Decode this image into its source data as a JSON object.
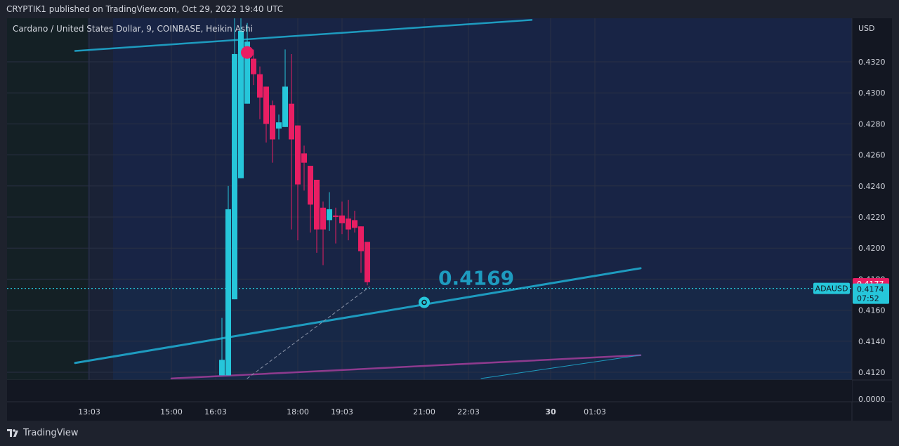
{
  "header": {
    "published_line": "CRYPTIK1 published on TradingView.com, Oct 29, 2022 19:40 UTC"
  },
  "footer": {
    "brand": "TradingView"
  },
  "chart_data": {
    "type": "candlestick",
    "candle_style": "Heikin Ashi",
    "symbol_title": "Cardano / United States Dollar, 9, COINBASE, Heikin Ashi",
    "currency": "USD",
    "symbol": "ADAUSD",
    "y_axis": {
      "min": 0.4115,
      "max": 0.4345,
      "ticks": [
        "0.4320",
        "0.4300",
        "0.4280",
        "0.4260",
        "0.4240",
        "0.4220",
        "0.4200",
        "0.4180",
        "0.4160",
        "0.4140",
        "0.4120"
      ]
    },
    "volume_axis_label": "0.0000",
    "x_axis_ticks": [
      {
        "label": "13:03",
        "t": -180
      },
      {
        "label": "15:00",
        "t": -63
      },
      {
        "label": "16:03",
        "t": 0
      },
      {
        "label": "18:00",
        "t": 117
      },
      {
        "label": "19:03",
        "t": 180
      },
      {
        "label": "21:00",
        "t": 297
      },
      {
        "label": "22:03",
        "t": 360
      },
      {
        "label": "30",
        "t": 477,
        "bold": true
      },
      {
        "label": "01:03",
        "t": 540
      }
    ],
    "candles": [
      {
        "t": 9,
        "o": 0.4118,
        "h": 0.4155,
        "l": 0.4118,
        "c": 0.4128
      },
      {
        "t": 18,
        "o": 0.4118,
        "h": 0.424,
        "l": 0.4118,
        "c": 0.4225
      },
      {
        "t": 27,
        "o": 0.4167,
        "h": 0.4348,
        "l": 0.4167,
        "c": 0.4325
      },
      {
        "t": 36,
        "o": 0.4245,
        "h": 0.4348,
        "l": 0.4245,
        "c": 0.434
      },
      {
        "t": 45,
        "o": 0.4293,
        "h": 0.4345,
        "l": 0.4293,
        "c": 0.4333
      },
      {
        "t": 54,
        "o": 0.4322,
        "h": 0.4328,
        "l": 0.4305,
        "c": 0.4312
      },
      {
        "t": 63,
        "o": 0.4312,
        "h": 0.4317,
        "l": 0.4283,
        "c": 0.4297
      },
      {
        "t": 72,
        "o": 0.4304,
        "h": 0.4304,
        "l": 0.4268,
        "c": 0.428
      },
      {
        "t": 81,
        "o": 0.4292,
        "h": 0.4295,
        "l": 0.4255,
        "c": 0.427
      },
      {
        "t": 90,
        "o": 0.4277,
        "h": 0.4286,
        "l": 0.427,
        "c": 0.4281
      },
      {
        "t": 99,
        "o": 0.4278,
        "h": 0.4328,
        "l": 0.4278,
        "c": 0.4304
      },
      {
        "t": 108,
        "o": 0.4293,
        "h": 0.4325,
        "l": 0.4212,
        "c": 0.427
      },
      {
        "t": 117,
        "o": 0.4279,
        "h": 0.4279,
        "l": 0.4205,
        "c": 0.4241
      },
      {
        "t": 126,
        "o": 0.4261,
        "h": 0.4266,
        "l": 0.4237,
        "c": 0.4255
      },
      {
        "t": 135,
        "o": 0.4253,
        "h": 0.4253,
        "l": 0.421,
        "c": 0.4228
      },
      {
        "t": 144,
        "o": 0.4244,
        "h": 0.4244,
        "l": 0.4197,
        "c": 0.4212
      },
      {
        "t": 153,
        "o": 0.4226,
        "h": 0.423,
        "l": 0.4189,
        "c": 0.4212
      },
      {
        "t": 162,
        "o": 0.4218,
        "h": 0.4236,
        "l": 0.4211,
        "c": 0.4225
      },
      {
        "t": 171,
        "o": 0.4221,
        "h": 0.4226,
        "l": 0.4203,
        "c": 0.422
      },
      {
        "t": 180,
        "o": 0.4221,
        "h": 0.423,
        "l": 0.4209,
        "c": 0.4216
      },
      {
        "t": 189,
        "o": 0.4219,
        "h": 0.4231,
        "l": 0.4205,
        "c": 0.4212
      },
      {
        "t": 198,
        "o": 0.4218,
        "h": 0.4224,
        "l": 0.421,
        "c": 0.4213
      },
      {
        "t": 207,
        "o": 0.4214,
        "h": 0.4214,
        "l": 0.4184,
        "c": 0.4198
      },
      {
        "t": 216,
        "o": 0.4204,
        "h": 0.4204,
        "l": 0.4176,
        "c": 0.4178
      }
    ],
    "last_price": {
      "label": "0.4177",
      "color": "#e91e63"
    },
    "current_price": {
      "value": 0.4174,
      "label": "0.4174",
      "countdown": "07:52",
      "color": "#26c6da"
    },
    "annotation": {
      "text": "0.4169",
      "t": 297,
      "price": 0.4165
    },
    "signal_marker": {
      "t": 45,
      "price": 0.4326
    },
    "trendlines": [
      {
        "name": "upper-channel-line",
        "color": "#1e9bbf",
        "width": 2.5,
        "p1": {
          "t": -200,
          "price": 0.4327
        },
        "p2": {
          "t": 450,
          "price": 0.4347
        }
      },
      {
        "name": "lower-trendline",
        "color": "#1e9bbf",
        "width": 3,
        "p1": {
          "t": -200,
          "price": 0.4126
        },
        "p2": {
          "t": 605,
          "price": 0.4187
        }
      },
      {
        "name": "purple-trendline",
        "color": "#8e3a8e",
        "width": 2.5,
        "p1": {
          "t": -63,
          "price": 0.4116
        },
        "p2": {
          "t": 605,
          "price": 0.4131
        }
      },
      {
        "name": "thin-cyan-line",
        "color": "#1e9bbf",
        "width": 1,
        "p1": {
          "t": 378,
          "price": 0.4116
        },
        "p2": {
          "t": 605,
          "price": 0.4131
        }
      },
      {
        "name": "projection-dashed-line",
        "color": "#8a93a8",
        "width": 1,
        "dashed": true,
        "p1": {
          "t": 45,
          "price": 0.4116
        },
        "p2": {
          "t": 219,
          "price": 0.4175
        }
      }
    ],
    "shaded_range": {
      "t_start": -146,
      "t_end": 605,
      "price_bottom": 0.4116,
      "price_top": 0.4175
    },
    "colors": {
      "up": "#26c6da",
      "down": "#e91e63",
      "background": "#131722",
      "zone": "#172847"
    }
  }
}
